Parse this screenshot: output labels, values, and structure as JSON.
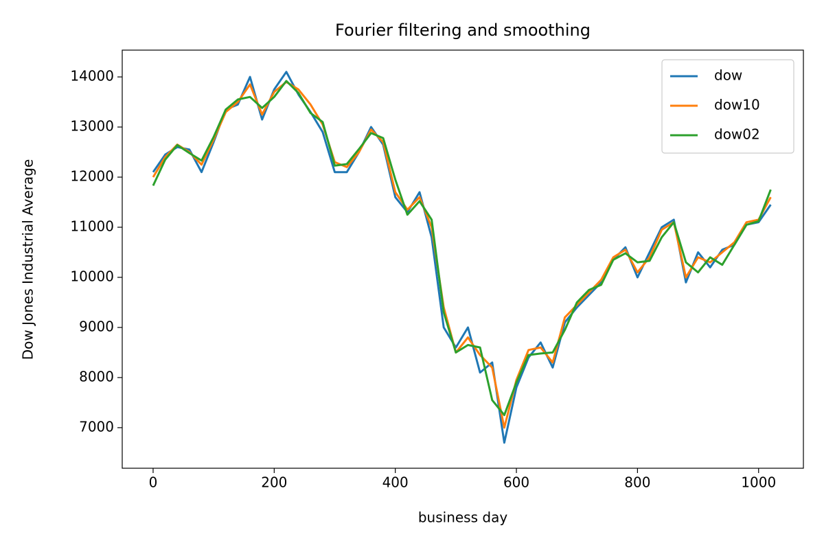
{
  "chart_data": {
    "type": "line",
    "title": "Fourier filtering and smoothing",
    "x_label": "business day",
    "y_label": "Dow Jones Industrial Average",
    "x": [
      0,
      20,
      40,
      60,
      80,
      100,
      120,
      140,
      160,
      180,
      200,
      220,
      240,
      260,
      280,
      300,
      320,
      340,
      360,
      380,
      400,
      420,
      440,
      460,
      480,
      500,
      520,
      540,
      560,
      580,
      600,
      620,
      640,
      660,
      680,
      700,
      720,
      740,
      760,
      780,
      800,
      820,
      840,
      860,
      880,
      900,
      920,
      940,
      960,
      980,
      1000,
      1020
    ],
    "series": [
      {
        "name": "dow",
        "color": "#1f77b4",
        "values": [
          12100,
          12450,
          12600,
          12550,
          12100,
          12700,
          13350,
          13450,
          14000,
          13150,
          13750,
          14100,
          13650,
          13300,
          12900,
          12100,
          12100,
          12500,
          13000,
          12650,
          11600,
          11300,
          11700,
          10800,
          9000,
          8600,
          9000,
          8100,
          8300,
          6700,
          7800,
          8400,
          8700,
          8200,
          9100,
          9400,
          9650,
          9900,
          10350,
          10600,
          10000,
          10500,
          11000,
          11150,
          9900,
          10500,
          10200,
          10550,
          10650,
          11050,
          11100,
          11450
        ]
      },
      {
        "name": "dow10",
        "color": "#ff7f0e",
        "values": [
          12000,
          12400,
          12650,
          12500,
          12250,
          12750,
          13300,
          13500,
          13850,
          13250,
          13700,
          13900,
          13750,
          13450,
          13050,
          12300,
          12200,
          12500,
          12950,
          12700,
          11700,
          11350,
          11600,
          11000,
          9400,
          8500,
          8800,
          8450,
          8200,
          7000,
          7950,
          8550,
          8600,
          8300,
          9200,
          9450,
          9700,
          9950,
          10400,
          10550,
          10100,
          10400,
          10950,
          11100,
          10000,
          10400,
          10300,
          10500,
          10700,
          11100,
          11150,
          11600
        ]
      },
      {
        "name": "dow02",
        "color": "#2ca02c",
        "values": [
          11830,
          12350,
          12640,
          12480,
          12330,
          12800,
          13350,
          13550,
          13600,
          13380,
          13600,
          13920,
          13680,
          13280,
          13100,
          12230,
          12260,
          12560,
          12880,
          12780,
          11950,
          11250,
          11520,
          11150,
          9300,
          8500,
          8650,
          8600,
          7550,
          7250,
          7900,
          8450,
          8480,
          8500,
          8950,
          9500,
          9750,
          9850,
          10350,
          10480,
          10300,
          10330,
          10800,
          11100,
          10300,
          10100,
          10400,
          10250,
          10650,
          11050,
          11120,
          11750
        ]
      }
    ],
    "xlim": [
      -51,
      1074
    ],
    "ylim": [
      6190,
      14535
    ],
    "xticks": [
      0,
      200,
      400,
      600,
      800,
      1000
    ],
    "yticks": [
      7000,
      8000,
      9000,
      10000,
      11000,
      12000,
      13000,
      14000
    ],
    "legend": "upper right"
  }
}
